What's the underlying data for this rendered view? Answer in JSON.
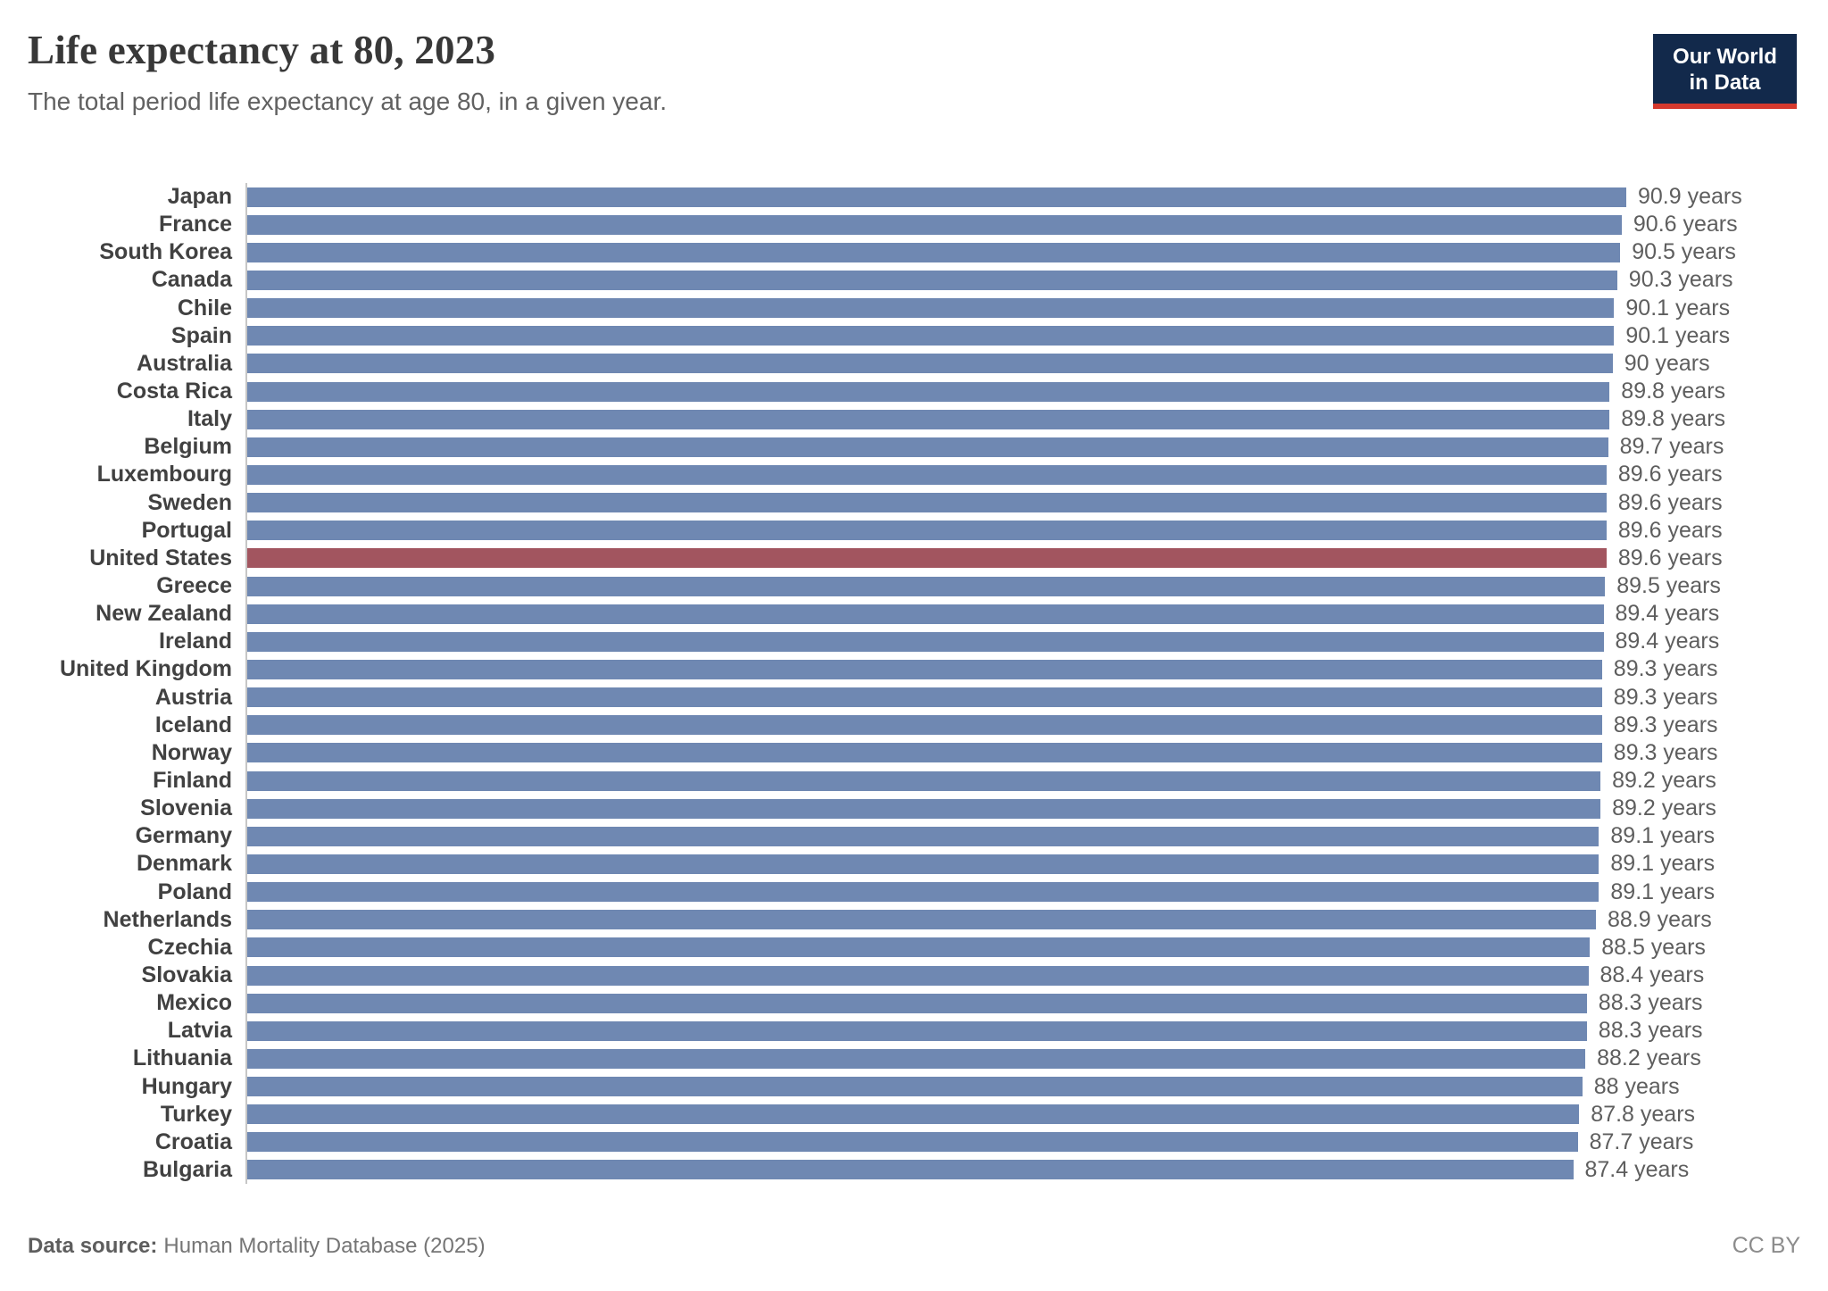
{
  "header": {
    "title": "Life expectancy at 80, 2023",
    "subtitle": "The total period life expectancy at age 80, in a given year."
  },
  "logo": {
    "line1": "Our World",
    "line2": "in Data"
  },
  "footer": {
    "source_label": "Data source:",
    "source_text": "Human Mortality Database (2025)",
    "license": "CC BY"
  },
  "colors": {
    "bar": "#6f88b2",
    "highlight_bar": "#a2555f",
    "axis": "#c6c6c6",
    "logo_navy": "#12294b",
    "logo_red": "#d5392e"
  },
  "chart_data": {
    "type": "bar",
    "orientation": "horizontal",
    "title": "Life expectancy at 80, 2023",
    "subtitle": "The total period life expectancy at age 80, in a given year.",
    "unit": "years",
    "xlim": [
      0,
      90.9
    ],
    "grid": false,
    "legend": false,
    "highlight_category": "United States",
    "categories": [
      "Japan",
      "France",
      "South Korea",
      "Canada",
      "Chile",
      "Spain",
      "Australia",
      "Costa Rica",
      "Italy",
      "Belgium",
      "Luxembourg",
      "Sweden",
      "Portugal",
      "United States",
      "Greece",
      "New Zealand",
      "Ireland",
      "United Kingdom",
      "Austria",
      "Iceland",
      "Norway",
      "Finland",
      "Slovenia",
      "Germany",
      "Denmark",
      "Poland",
      "Netherlands",
      "Czechia",
      "Slovakia",
      "Mexico",
      "Latvia",
      "Lithuania",
      "Hungary",
      "Turkey",
      "Croatia",
      "Bulgaria"
    ],
    "values": [
      90.9,
      90.6,
      90.5,
      90.3,
      90.1,
      90.1,
      90,
      89.8,
      89.8,
      89.7,
      89.6,
      89.6,
      89.6,
      89.6,
      89.5,
      89.4,
      89.4,
      89.3,
      89.3,
      89.3,
      89.3,
      89.2,
      89.2,
      89.1,
      89.1,
      89.1,
      88.9,
      88.5,
      88.4,
      88.3,
      88.3,
      88.2,
      88,
      87.8,
      87.7,
      87.4
    ],
    "value_labels": [
      "90.9 years",
      "90.6 years",
      "90.5 years",
      "90.3 years",
      "90.1 years",
      "90.1 years",
      "90 years",
      "89.8 years",
      "89.8 years",
      "89.7 years",
      "89.6 years",
      "89.6 years",
      "89.6 years",
      "89.6 years",
      "89.5 years",
      "89.4 years",
      "89.4 years",
      "89.3 years",
      "89.3 years",
      "89.3 years",
      "89.3 years",
      "89.2 years",
      "89.2 years",
      "89.1 years",
      "89.1 years",
      "89.1 years",
      "88.9 years",
      "88.5 years",
      "88.4 years",
      "88.3 years",
      "88.3 years",
      "88.2 years",
      "88 years",
      "87.8 years",
      "87.7 years",
      "87.4 years"
    ]
  }
}
